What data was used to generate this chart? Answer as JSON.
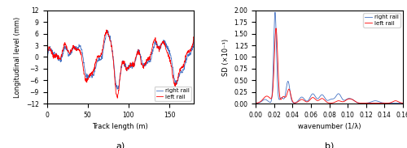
{
  "left_plot": {
    "xlabel": "Track length (m)",
    "ylabel": "Longitudinal level (mm)",
    "xlim": [
      0,
      180
    ],
    "ylim": [
      -12,
      12
    ],
    "yticks": [
      -12,
      -9,
      -6,
      -3,
      0,
      3,
      6,
      9,
      12
    ],
    "xticks": [
      0,
      50,
      100,
      150
    ],
    "label_a": "a)",
    "legend_right": "right rail",
    "legend_left": "left rail",
    "color_right": "#4472C4",
    "color_left": "#FF0000"
  },
  "right_plot": {
    "xlabel": "wavenumber (1/λ)",
    "ylabel": "SD (×10⁻¹)",
    "xlim": [
      0,
      0.16
    ],
    "ylim": [
      0,
      2.0
    ],
    "yticks": [
      0.0,
      0.25,
      0.5,
      0.75,
      1.0,
      1.25,
      1.5,
      1.75,
      2.0
    ],
    "xticks": [
      0,
      0.02,
      0.04,
      0.06,
      0.08,
      0.1,
      0.12,
      0.14,
      0.16
    ],
    "label_b": "b)",
    "legend_right": "right rail",
    "legend_left": "left rail",
    "color_right": "#4472C4",
    "color_left": "#FF0000"
  }
}
